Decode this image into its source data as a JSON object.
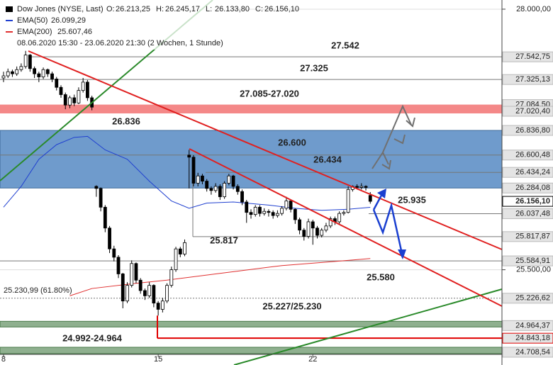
{
  "chart_data": {
    "type": "candlestick",
    "title": "Dow Jones (NYSE, Last)",
    "ohlc_header": [
      {
        "name": "O:",
        "value": 26213.25,
        "label": "26.213,25"
      },
      {
        "name": "H:",
        "value": 26245.17,
        "label": "26.245,17"
      },
      {
        "name": "L:",
        "value": 26133.8,
        "label": "26.133,80"
      },
      {
        "name": "C:",
        "value": 26156.1,
        "label": "26.156,10"
      }
    ],
    "period": "08.06.2020 15:30 - 23.06.2020 21:30",
    "interval": "(2 Wochen, 1 Stunde)",
    "up_color": "#ffffff",
    "down_color": "#000000",
    "open": [
      27340,
      27360,
      27400,
      27380,
      27420,
      27450,
      27560,
      27430,
      27380,
      27350,
      27420,
      27380,
      27330,
      27250,
      27180,
      27080,
      27150,
      27100,
      27220,
      27300,
      27150,
      26300,
      26280,
      26100,
      25900,
      25700,
      25620,
      25460,
      25200,
      25350,
      25560,
      25400,
      25300,
      25250,
      25350,
      25180,
      25120,
      25200,
      25350,
      25500,
      25700,
      25650,
      26600,
      26580,
      26330,
      26400,
      26350,
      26280,
      26260,
      26300,
      26200,
      26330,
      26400,
      26300,
      26250,
      26150,
      26050,
      26030,
      26100,
      26040,
      26060,
      26050,
      26020,
      26040,
      26090,
      26160,
      26080,
      25980,
      25880,
      25820,
      25960,
      25900,
      25830,
      25880,
      25920,
      25990,
      25960,
      26040,
      26050,
      26270,
      26300,
      26290,
      26300,
      26213.25
    ],
    "high": [
      27400,
      27430,
      27420,
      27450,
      27480,
      27600,
      27570,
      27450,
      27400,
      27440,
      27430,
      27400,
      27350,
      27270,
      27200,
      27170,
      27180,
      27250,
      27340,
      27320,
      27170,
      26310,
      26290,
      26120,
      25920,
      25730,
      25640,
      25470,
      25380,
      25590,
      25570,
      25420,
      25320,
      25380,
      25360,
      25200,
      25230,
      25370,
      25530,
      25720,
      25720,
      25790,
      26650,
      26600,
      26430,
      26420,
      26370,
      26300,
      26330,
      26320,
      26350,
      26420,
      26410,
      26320,
      26270,
      26170,
      26080,
      26120,
      26120,
      26090,
      26080,
      26070,
      26070,
      26110,
      26200,
      26170,
      26090,
      26000,
      25900,
      25990,
      25980,
      25920,
      25900,
      25950,
      26010,
      26010,
      26060,
      26070,
      26300,
      26310,
      26320,
      26330,
      26310,
      26245.17
    ],
    "low": [
      27300,
      27340,
      27350,
      27360,
      27400,
      27430,
      27400,
      27340,
      27300,
      27330,
      27350,
      27300,
      27220,
      27150,
      27040,
      27050,
      27070,
      27090,
      27200,
      27120,
      27030,
      26200,
      26060,
      25860,
      25660,
      25580,
      25420,
      25130,
      25180,
      25330,
      25370,
      25270,
      25210,
      25230,
      25140,
      25060,
      25090,
      25180,
      25330,
      25480,
      25620,
      25630,
      26280,
      26300,
      26300,
      26320,
      26250,
      26220,
      26240,
      26170,
      26180,
      26310,
      26270,
      26220,
      26120,
      25950,
      25990,
      26010,
      26010,
      26020,
      26010,
      25990,
      26000,
      26020,
      26070,
      26050,
      25940,
      25840,
      25780,
      25800,
      25740,
      25800,
      25810,
      25860,
      25900,
      25930,
      25940,
      26020,
      26040,
      26250,
      26270,
      26270,
      26260,
      26133.8
    ],
    "close": [
      27360,
      27400,
      27380,
      27420,
      27450,
      27560,
      27430,
      27380,
      27350,
      27420,
      27380,
      27330,
      27250,
      27180,
      27080,
      27150,
      27100,
      27220,
      27300,
      27150,
      27060,
      26280,
      26100,
      25900,
      25700,
      25620,
      25460,
      25200,
      25350,
      25560,
      25400,
      25300,
      25250,
      25350,
      25180,
      25120,
      25200,
      25350,
      25500,
      25700,
      25650,
      25760,
      26580,
      26330,
      26400,
      26350,
      26280,
      26260,
      26300,
      26200,
      26330,
      26400,
      26300,
      26250,
      26150,
      26050,
      26030,
      26100,
      26040,
      26060,
      26050,
      26020,
      26040,
      26090,
      26160,
      26080,
      25980,
      25880,
      25820,
      25960,
      25900,
      25830,
      25880,
      25920,
      25990,
      25960,
      26040,
      26050,
      26270,
      26300,
      26290,
      26300,
      26290,
      26156.1
    ],
    "series": [
      {
        "name": "EMA(50)",
        "color": "#2040d0",
        "x": [
          0,
          4,
          8,
          12,
          16,
          19,
          23,
          28,
          33,
          38,
          42,
          46,
          52,
          60,
          66,
          72,
          78,
          83
        ],
        "values": [
          26100,
          26300,
          26560,
          26700,
          26770,
          26780,
          26650,
          26560,
          26350,
          26160,
          26090,
          26140,
          26150,
          26120,
          26090,
          26070,
          26080,
          26099.29
        ],
        "last": {
          "value": 26099.29,
          "label": "26.099,29"
        }
      },
      {
        "name": "EMA(200)",
        "color": "#e03030",
        "x": [
          15,
          20,
          30,
          37,
          48,
          63,
          75,
          83
        ],
        "values": [
          25250,
          25320,
          25370,
          25400,
          25460,
          25540,
          25580,
          25607.46
        ],
        "last": {
          "value": 25607.46,
          "label": "25.607,46"
        }
      }
    ],
    "ylim": [
      24688,
      28088
    ],
    "xlim": [
      -0.8,
      112.8
    ],
    "yticks": [
      {
        "value": 28000,
        "label": "28.000,00"
      },
      {
        "value": 25500,
        "label": "25.500,00"
      }
    ],
    "xticks": [
      {
        "value": 0,
        "label": "8"
      },
      {
        "value": 35,
        "label": "15"
      },
      {
        "value": 70,
        "label": "22"
      }
    ],
    "price_levels": [
      {
        "value": 27542.75,
        "label": "27.542,75"
      },
      {
        "value": 27325.13,
        "label": "27.325,13"
      },
      {
        "value": 27084.5,
        "label": "27.084,50"
      },
      {
        "value": 27020.4,
        "label": "27.020,40"
      },
      {
        "value": 26836.8,
        "label": "26.836,80"
      },
      {
        "value": 26600.48,
        "label": "26.600,48"
      },
      {
        "value": 26434.24,
        "label": "26.434,24"
      },
      {
        "value": 26284.08,
        "label": "26.284,08"
      },
      {
        "value": 26156.1,
        "label": "26.156,10"
      },
      {
        "value": 26037.48,
        "label": "26.037,48"
      },
      {
        "value": 25817.87,
        "label": "25.817,87"
      },
      {
        "value": 25584.91,
        "label": "25.584,91"
      },
      {
        "value": 25226.62,
        "label": "25.226,62"
      },
      {
        "value": 24964.37,
        "label": "24.964,37"
      },
      {
        "value": 24843.18,
        "label": "24.843,18",
        "color": "#e00000"
      },
      {
        "value": 24708.54,
        "label": "24.708,54"
      }
    ],
    "annotations": [
      {
        "text": "27.542",
        "color": "#707070"
      },
      {
        "text": "27.325",
        "color": "#707070"
      },
      {
        "text": "27.085-27.020",
        "color": "#707070"
      },
      {
        "text": "26.836",
        "color": "#707070"
      },
      {
        "text": "26.600",
        "color": "#4a6a90"
      },
      {
        "text": "26.434",
        "color": "#707070"
      },
      {
        "text": "25.935",
        "color": "#1a3fd0"
      },
      {
        "text": "25.817",
        "color": "#1a3fd0"
      },
      {
        "text": "25.580",
        "color": "#1a3fd0"
      },
      {
        "text": "25.227/25.230",
        "color": "#707070"
      },
      {
        "text": "24.992-24.964",
        "color": "#707070"
      },
      {
        "text": "25.230,99 (61.80%)",
        "color": "#222222"
      }
    ]
  }
}
